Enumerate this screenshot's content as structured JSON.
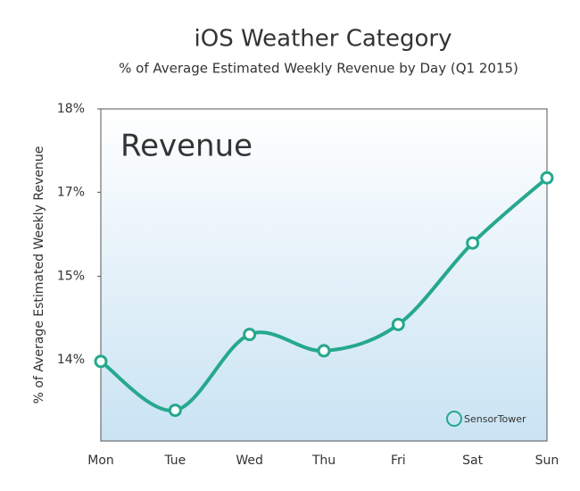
{
  "chart_data": {
    "type": "line",
    "title": "iOS Weather Category",
    "subtitle": "% of Average Estimated Weekly Revenue by Day (Q1 2015)",
    "y_label": "% of  Average Estimated Weekly Revenue",
    "watermark": "Revenue",
    "logo": "SensorTower",
    "categories": [
      "Mon",
      "Tue",
      "Wed",
      "Thu",
      "Fri",
      "Sat",
      "Sun"
    ],
    "series": [
      {
        "name": "Revenue",
        "color": "#26a88e",
        "values": [
          13.97,
          13.19,
          14.4,
          14.14,
          14.56,
          15.86,
          16.9
        ]
      }
    ],
    "ylim": [
      12.7,
      18
    ],
    "yticks": [
      {
        "value": 14,
        "label": "14%"
      },
      {
        "value": 15.33,
        "label": "15%"
      },
      {
        "value": 16.67,
        "label": "17%"
      },
      {
        "value": 18,
        "label": "18%"
      }
    ],
    "grid": false
  }
}
